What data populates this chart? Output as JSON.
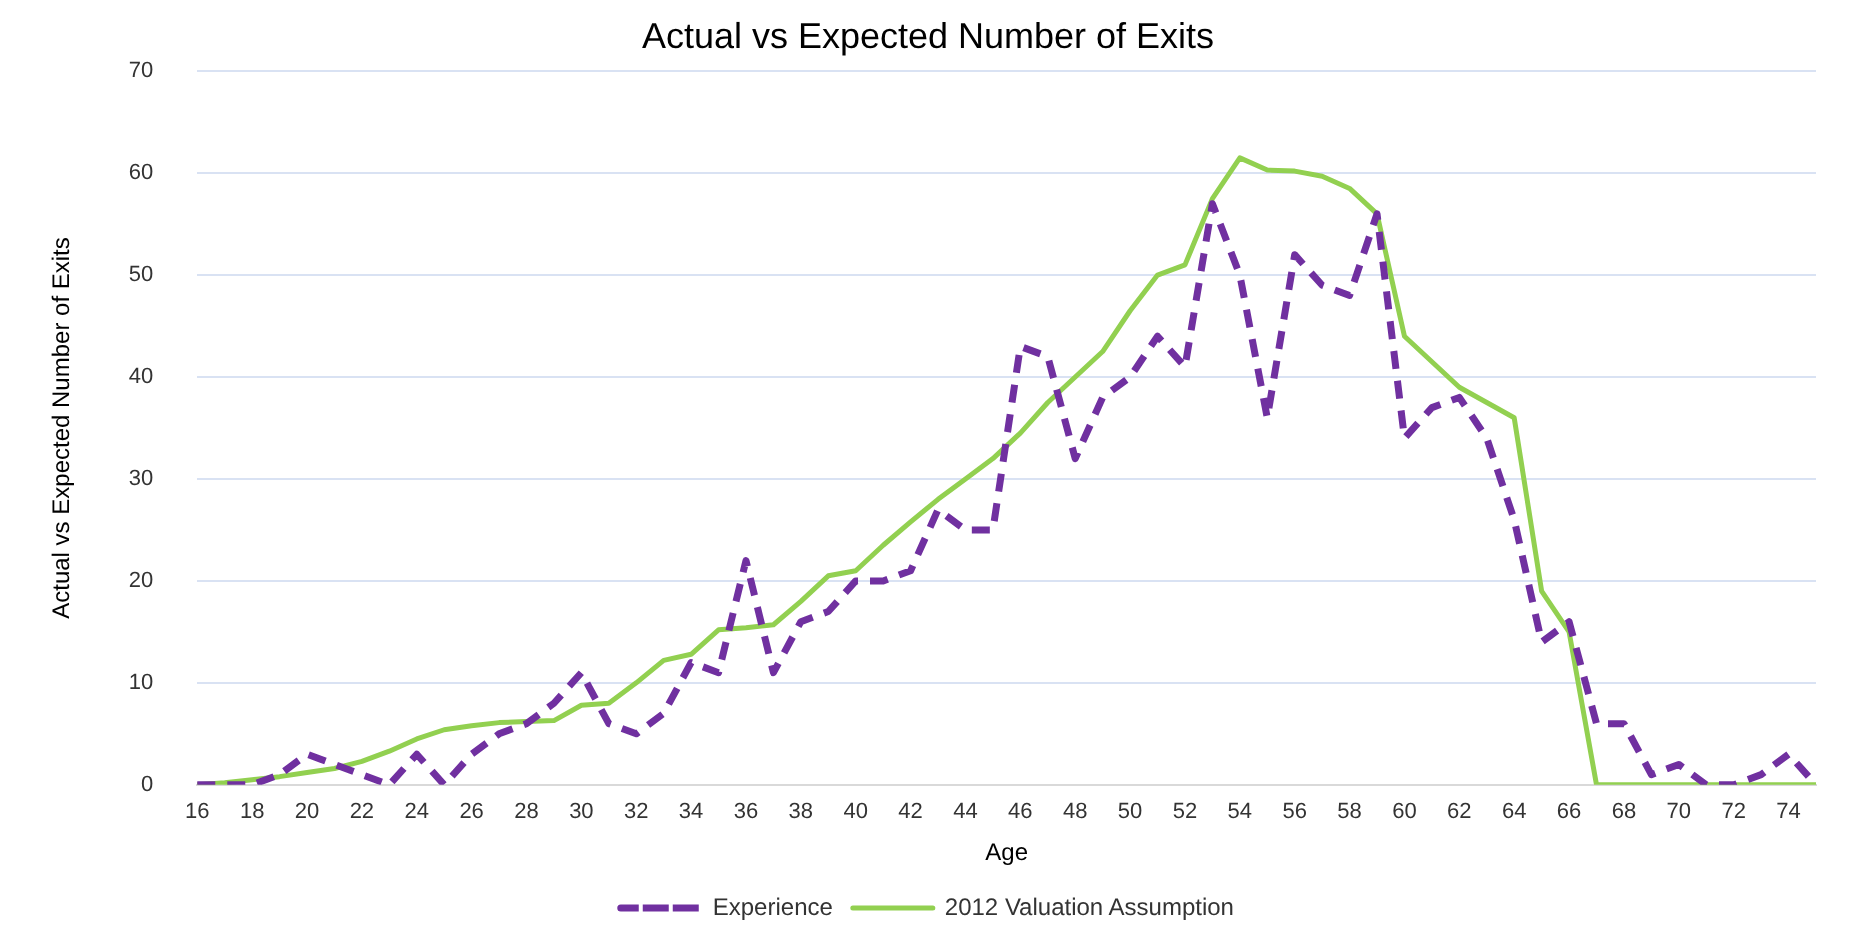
{
  "chart_data": {
    "type": "line",
    "title": "Actual vs Expected Number of Exits",
    "xlabel": "Age",
    "ylabel": "Actual vs Expected Number of Exits",
    "categories": [
      "16",
      null,
      "18",
      null,
      "20",
      null,
      "22",
      null,
      "24",
      null,
      "26",
      null,
      "28",
      null,
      "30",
      null,
      "32",
      null,
      "34",
      null,
      "36",
      null,
      "38",
      null,
      "40",
      null,
      "42",
      null,
      "44",
      null,
      "46",
      null,
      "48",
      null,
      "50",
      null,
      "52",
      null,
      "54",
      null,
      "56",
      null,
      "58",
      null,
      "60",
      null,
      "62",
      null,
      "64",
      null,
      "66",
      null,
      "68",
      null,
      "70",
      null,
      "72",
      null,
      "74",
      null
    ],
    "series": [
      {
        "name": "Experience",
        "color": "#7030a0",
        "line_style": "dashed",
        "values": [
          0,
          0,
          0,
          1,
          3,
          2,
          1,
          0,
          3,
          0,
          3,
          5,
          6,
          8,
          11,
          6,
          5,
          7,
          12,
          11,
          22,
          11,
          16,
          17,
          20,
          20,
          21,
          27,
          25,
          25,
          43,
          42,
          32,
          38,
          40,
          44,
          41,
          57,
          50,
          36,
          52,
          49,
          48,
          56,
          34,
          37,
          38,
          34,
          26,
          14,
          16,
          6,
          6,
          1,
          2,
          0,
          0,
          1,
          3,
          0
        ]
      },
      {
        "name": "2012 Valuation Assumption",
        "color": "#92d050",
        "line_style": "solid",
        "values": [
          0,
          0.2,
          0.5,
          0.8,
          1.2,
          1.6,
          2.3,
          3.3,
          4.5,
          5.4,
          5.8,
          6.1,
          6.2,
          6.3,
          7.8,
          8,
          10,
          12.2,
          12.8,
          15.2,
          15.4,
          15.7,
          18,
          20.5,
          21,
          23.5,
          25.8,
          28,
          30,
          32,
          34.5,
          37.5,
          40,
          42.5,
          46.5,
          50,
          51,
          57.5,
          61.5,
          60.3,
          60.2,
          59.7,
          58.5,
          56,
          44,
          41.5,
          39,
          37.5,
          36,
          19,
          15,
          0,
          0,
          0,
          0,
          0,
          0,
          0,
          0,
          0
        ]
      }
    ],
    "ylim": [
      0,
      70
    ],
    "yticks": [
      0,
      10,
      20,
      30,
      40,
      50,
      60,
      70
    ],
    "grid": "y",
    "legend": "bottom",
    "marker": "none"
  }
}
